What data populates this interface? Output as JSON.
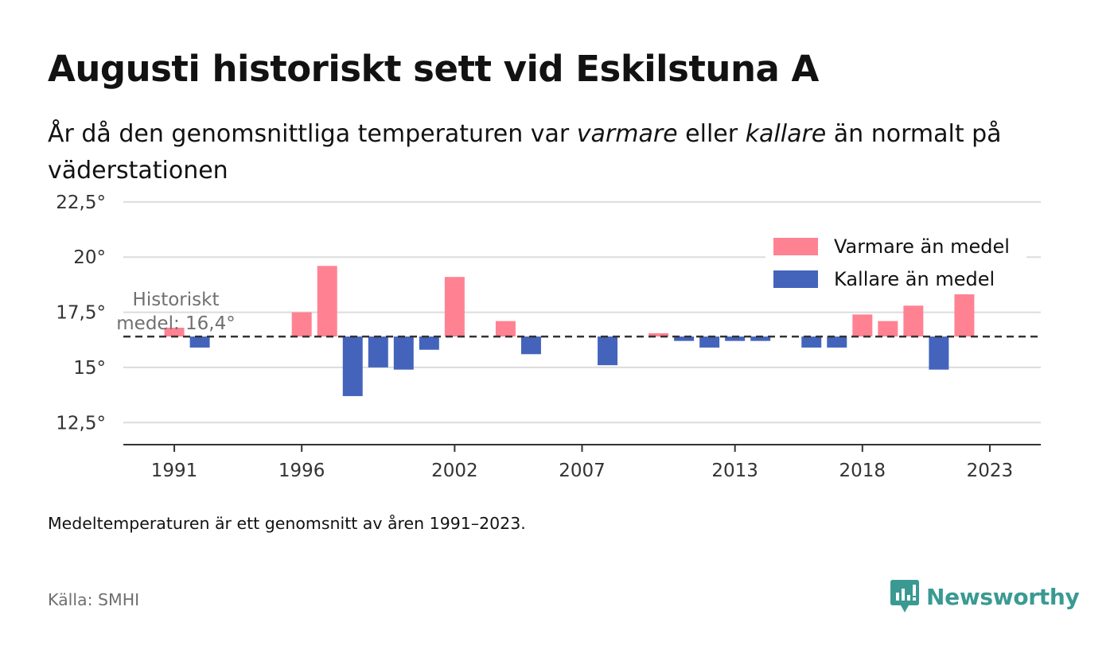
{
  "title": "Augusti historiskt sett vid Eskilstuna A",
  "subtitle": {
    "part1": "År då den genomsnittliga temperaturen var ",
    "em1": "varmare",
    "part2": " eller ",
    "em2": "kallare",
    "part3": " än normalt på väderstationen"
  },
  "note": "Medeltemperaturen är ett genomsnitt av åren 1991–2023.",
  "source": "Källa: SMHI",
  "logo": {
    "text": "Newsworthy",
    "icon": "newsworthy-chart-bubble-icon"
  },
  "colors": {
    "warm": "#ff8293",
    "cold": "#4464bc",
    "grid": "#dcdcdc",
    "axis": "#333333",
    "mean_line": "#333333"
  },
  "chart_data": {
    "type": "bar",
    "baseline": 16.4,
    "baseline_label": [
      "Historiskt",
      "medel: 16,4°"
    ],
    "ylim": [
      11.5,
      23
    ],
    "yticks": [
      {
        "value": 12.5,
        "label": "12,5°"
      },
      {
        "value": 15,
        "label": "15°"
      },
      {
        "value": 17.5,
        "label": "17,5°"
      },
      {
        "value": 20,
        "label": "20°"
      },
      {
        "value": 22.5,
        "label": "22,5°"
      }
    ],
    "xlim": [
      1989,
      2025
    ],
    "xticks": [
      {
        "value": 1991,
        "label": "1991"
      },
      {
        "value": 1996,
        "label": "1996"
      },
      {
        "value": 2002,
        "label": "2002"
      },
      {
        "value": 2007,
        "label": "2007"
      },
      {
        "value": 2013,
        "label": "2013"
      },
      {
        "value": 2018,
        "label": "2018"
      },
      {
        "value": 2023,
        "label": "2023"
      }
    ],
    "grid": true,
    "legend_position": "top-right",
    "legend": [
      {
        "label": "Varmare än medel",
        "color_key": "warm"
      },
      {
        "label": "Kallare än medel",
        "color_key": "cold"
      }
    ],
    "series": [
      {
        "x": 1991,
        "y": 16.8
      },
      {
        "x": 1992,
        "y": 15.9
      },
      {
        "x": 1996,
        "y": 17.5
      },
      {
        "x": 1997,
        "y": 19.6
      },
      {
        "x": 1998,
        "y": 13.7
      },
      {
        "x": 1999,
        "y": 15.0
      },
      {
        "x": 2000,
        "y": 14.9
      },
      {
        "x": 2001,
        "y": 15.8
      },
      {
        "x": 2002,
        "y": 19.1
      },
      {
        "x": 2004,
        "y": 17.1
      },
      {
        "x": 2005,
        "y": 15.6
      },
      {
        "x": 2008,
        "y": 15.1
      },
      {
        "x": 2010,
        "y": 16.55
      },
      {
        "x": 2011,
        "y": 16.2
      },
      {
        "x": 2012,
        "y": 15.9
      },
      {
        "x": 2013,
        "y": 16.2
      },
      {
        "x": 2014,
        "y": 16.2
      },
      {
        "x": 2016,
        "y": 15.9
      },
      {
        "x": 2017,
        "y": 15.9
      },
      {
        "x": 2018,
        "y": 17.4
      },
      {
        "x": 2019,
        "y": 17.1
      },
      {
        "x": 2020,
        "y": 17.8
      },
      {
        "x": 2021,
        "y": 14.9
      },
      {
        "x": 2022,
        "y": 18.4
      }
    ]
  }
}
